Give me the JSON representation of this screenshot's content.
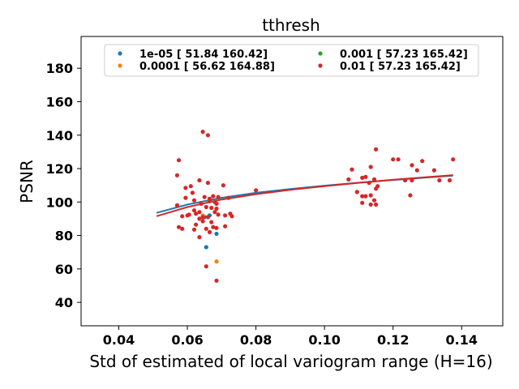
{
  "chart_data": {
    "type": "scatter",
    "title": "tthresh",
    "xlabel": "Std of estimated of local variogram range (H=16)",
    "ylabel": "PSNR",
    "xlim": [
      0.029,
      0.152
    ],
    "ylim": [
      26,
      199
    ],
    "xticks": [
      "0.04",
      "0.06",
      "0.08",
      "0.10",
      "0.12",
      "0.14"
    ],
    "yticks": [
      "40",
      "60",
      "80",
      "100",
      "120",
      "140",
      "160",
      "180"
    ],
    "legend_position": "top",
    "series": [
      {
        "name": "1e-05 [ 51.84 160.42]",
        "color": "#1f77b4",
        "points": [
          [
            0.0655,
            73
          ],
          [
            0.0685,
            81
          ],
          [
            0.0665,
            92
          ],
          [
            0.065,
            91
          ]
        ],
        "fit": [
          [
            0.051,
            93.5
          ],
          [
            0.06,
            98.5
          ],
          [
            0.07,
            102.5
          ],
          [
            0.08,
            105.5
          ],
          [
            0.09,
            107.8
          ],
          [
            0.1,
            109.8
          ],
          [
            0.11,
            111.6
          ],
          [
            0.12,
            113.2
          ],
          [
            0.13,
            114.7
          ],
          [
            0.1375,
            115.8
          ]
        ]
      },
      {
        "name": "0.0001 [ 56.62 164.88]",
        "color": "#ff7f0e",
        "points": [
          [
            0.0685,
            64.5
          ],
          [
            0.0645,
            92
          ]
        ],
        "fit": []
      },
      {
        "name": "0.001 [ 57.23 165.42]",
        "color": "#2ca02c",
        "points": [],
        "fit": []
      },
      {
        "name": "0.01 [ 57.23 165.42]",
        "color": "#d62728",
        "points": [
          [
            0.0645,
            142
          ],
          [
            0.066,
            140
          ],
          [
            0.0575,
            125
          ],
          [
            0.057,
            116
          ],
          [
            0.0635,
            113
          ],
          [
            0.066,
            111.5
          ],
          [
            0.0705,
            110
          ],
          [
            0.061,
            109.5
          ],
          [
            0.0595,
            108.5
          ],
          [
            0.0615,
            105.5
          ],
          [
            0.0675,
            103.5
          ],
          [
            0.069,
            103
          ],
          [
            0.072,
            102.5
          ],
          [
            0.065,
            103
          ],
          [
            0.0595,
            102.5
          ],
          [
            0.062,
            101
          ],
          [
            0.0665,
            100.5
          ],
          [
            0.068,
            100
          ],
          [
            0.0685,
            99
          ],
          [
            0.064,
            99
          ],
          [
            0.057,
            98
          ],
          [
            0.0655,
            97
          ],
          [
            0.067,
            96.5
          ],
          [
            0.0685,
            96
          ],
          [
            0.062,
            95
          ],
          [
            0.0635,
            94
          ],
          [
            0.0625,
            93
          ],
          [
            0.0605,
            92.5
          ],
          [
            0.06,
            92
          ],
          [
            0.0585,
            91.5
          ],
          [
            0.0645,
            91
          ],
          [
            0.066,
            91
          ],
          [
            0.069,
            92.5
          ],
          [
            0.071,
            92
          ],
          [
            0.0725,
            93
          ],
          [
            0.073,
            91.5
          ],
          [
            0.0635,
            90
          ],
          [
            0.067,
            88
          ],
          [
            0.0645,
            88.5
          ],
          [
            0.0625,
            86.5
          ],
          [
            0.0575,
            85
          ],
          [
            0.0585,
            84
          ],
          [
            0.0655,
            84
          ],
          [
            0.0675,
            85
          ],
          [
            0.071,
            85.5
          ],
          [
            0.0685,
            84.5
          ],
          [
            0.062,
            83.5
          ],
          [
            0.0665,
            82
          ],
          [
            0.0635,
            79
          ],
          [
            0.0655,
            61.5
          ],
          [
            0.0685,
            53
          ],
          [
            0.0665,
            102
          ],
          [
            0.08,
            107
          ],
          [
            0.068,
            94
          ],
          [
            0.108,
            119.5
          ],
          [
            0.107,
            113.5
          ],
          [
            0.1095,
            106
          ],
          [
            0.111,
            114.5
          ],
          [
            0.112,
            115
          ],
          [
            0.1135,
            121
          ],
          [
            0.115,
            131.5
          ],
          [
            0.1145,
            113.5
          ],
          [
            0.113,
            111.5
          ],
          [
            0.1155,
            109.5
          ],
          [
            0.115,
            108
          ],
          [
            0.111,
            103.5
          ],
          [
            0.112,
            103.5
          ],
          [
            0.1135,
            104
          ],
          [
            0.1145,
            101
          ],
          [
            0.111,
            99.5
          ],
          [
            0.1135,
            98.5
          ],
          [
            0.115,
            98.5
          ],
          [
            0.12,
            125.5
          ],
          [
            0.1215,
            125.5
          ],
          [
            0.1235,
            113
          ],
          [
            0.1255,
            113
          ],
          [
            0.1255,
            122
          ],
          [
            0.127,
            119
          ],
          [
            0.1285,
            124.5
          ],
          [
            0.125,
            104
          ],
          [
            0.132,
            119
          ],
          [
            0.1335,
            113
          ],
          [
            0.1365,
            113
          ],
          [
            0.1375,
            125.5
          ]
        ],
        "fit": [
          [
            0.051,
            91.5
          ],
          [
            0.06,
            97
          ],
          [
            0.07,
            101.5
          ],
          [
            0.08,
            104.7
          ],
          [
            0.09,
            107.3
          ],
          [
            0.1,
            109.5
          ],
          [
            0.11,
            111.5
          ],
          [
            0.12,
            113.3
          ],
          [
            0.13,
            114.9
          ],
          [
            0.1375,
            116.1
          ]
        ]
      }
    ]
  }
}
